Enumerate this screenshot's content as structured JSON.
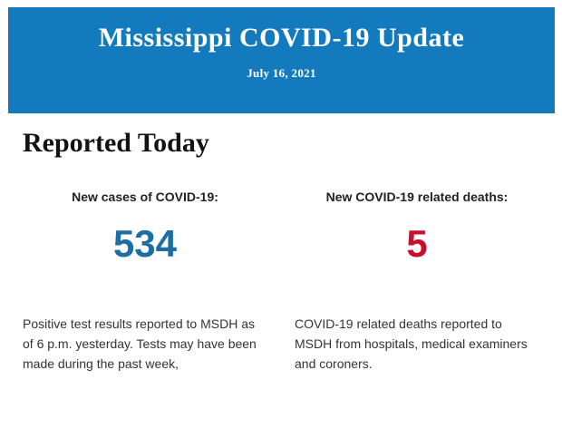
{
  "banner": {
    "title": "Mississippi COVID-19 Update",
    "date": "July 16, 2021",
    "background_color": "#137ABD",
    "text_color": "#FFFFFF"
  },
  "main": {
    "heading": "Reported Today",
    "stats": [
      {
        "label": "New cases of COVID-19:",
        "value": "534",
        "value_color": "#1C6EA4",
        "description": "Positive test results reported to MSDH as of 6 p.m. yesterday. Tests may have been made during the past week,"
      },
      {
        "label": "New COVID-19 related deaths:",
        "value": "5",
        "value_color": "#C8102E",
        "description": "COVID-19 related deaths reported to MSDH from hospitals, medical examiners and coroners."
      }
    ]
  }
}
